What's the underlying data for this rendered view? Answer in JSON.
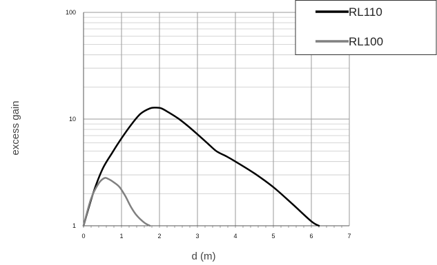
{
  "chart_data": {
    "type": "line",
    "xlabel": "d (m)",
    "ylabel": "excess gain",
    "xlim": [
      0,
      7
    ],
    "ylim": [
      1,
      100
    ],
    "y_scale": "log",
    "x_ticks": [
      "0",
      "1",
      "2",
      "3",
      "4",
      "5",
      "6",
      "7"
    ],
    "y_ticks": [
      "1",
      "10",
      "100"
    ],
    "grid": true,
    "legend_position": "top-right",
    "series": [
      {
        "name": "RL110",
        "color": "#000000",
        "x": [
          0,
          0.25,
          0.5,
          0.75,
          1.0,
          1.25,
          1.5,
          1.75,
          1.9,
          2.05,
          2.25,
          2.5,
          2.75,
          3.0,
          3.25,
          3.5,
          3.75,
          4.0,
          4.5,
          5.0,
          5.5,
          6.0,
          6.2
        ],
        "y": [
          1.0,
          2.0,
          3.4,
          4.8,
          6.6,
          8.8,
          11.2,
          12.6,
          12.8,
          12.6,
          11.5,
          10.1,
          8.6,
          7.2,
          6.0,
          5.0,
          4.5,
          4.0,
          3.1,
          2.3,
          1.6,
          1.1,
          1.0
        ]
      },
      {
        "name": "RL100",
        "color": "#808080",
        "x": [
          0,
          0.2,
          0.4,
          0.55,
          0.65,
          0.8,
          0.95,
          1.1,
          1.25,
          1.4,
          1.6,
          1.75
        ],
        "y": [
          1.0,
          1.8,
          2.5,
          2.8,
          2.75,
          2.55,
          2.3,
          1.9,
          1.5,
          1.25,
          1.07,
          1.0
        ]
      }
    ]
  }
}
